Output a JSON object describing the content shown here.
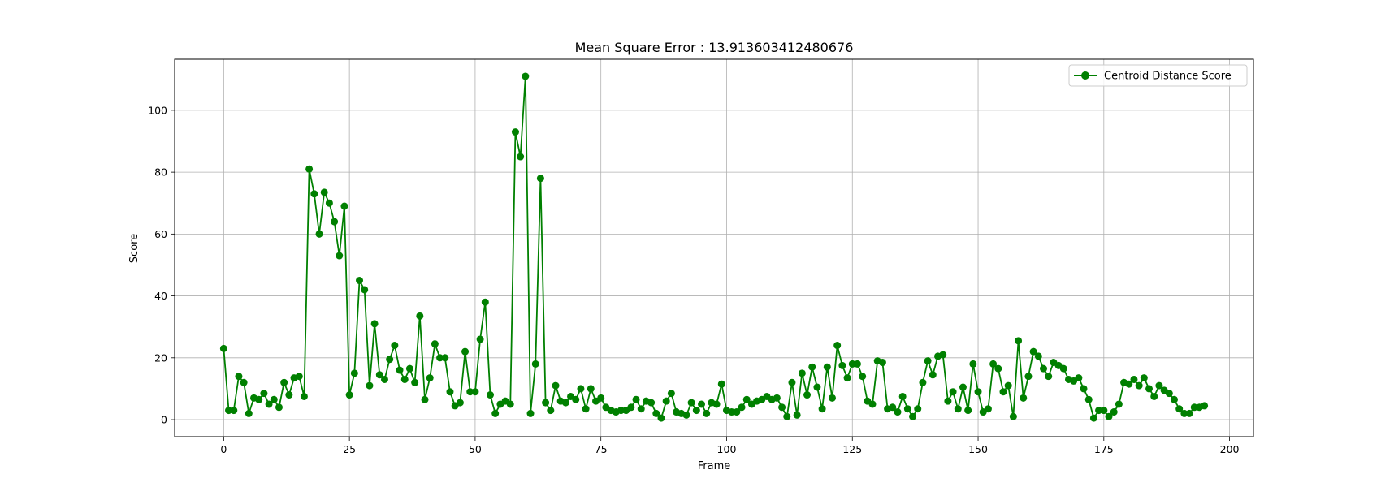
{
  "chart_data": {
    "type": "line",
    "title": "Mean Square Error : 13.913603412480676",
    "xlabel": "Frame",
    "ylabel": "Score",
    "xlim": [
      -9.75,
      204.75
    ],
    "ylim": [
      -5.5,
      116.5
    ],
    "xticks": [
      0,
      25,
      50,
      75,
      100,
      125,
      150,
      175,
      200
    ],
    "yticks": [
      0,
      20,
      40,
      60,
      80,
      100
    ],
    "grid": true,
    "legend_position": "top-right",
    "series": [
      {
        "name": "Centroid Distance Score",
        "color": "#008000",
        "marker": "circle",
        "x": [
          0,
          1,
          2,
          3,
          4,
          5,
          6,
          7,
          8,
          9,
          10,
          11,
          12,
          13,
          14,
          15,
          16,
          17,
          18,
          19,
          20,
          21,
          22,
          23,
          24,
          25,
          26,
          27,
          28,
          29,
          30,
          31,
          32,
          33,
          34,
          35,
          36,
          37,
          38,
          39,
          40,
          41,
          42,
          43,
          44,
          45,
          46,
          47,
          48,
          49,
          50,
          51,
          52,
          53,
          54,
          55,
          56,
          57,
          58,
          59,
          60,
          61,
          62,
          63,
          64,
          65,
          66,
          67,
          68,
          69,
          70,
          71,
          72,
          73,
          74,
          75,
          76,
          77,
          78,
          79,
          80,
          81,
          82,
          83,
          84,
          85,
          86,
          87,
          88,
          89,
          90,
          91,
          92,
          93,
          94,
          95,
          96,
          97,
          98,
          99,
          100,
          101,
          102,
          103,
          104,
          105,
          106,
          107,
          108,
          109,
          110,
          111,
          112,
          113,
          114,
          115,
          116,
          117,
          118,
          119,
          120,
          121,
          122,
          123,
          124,
          125,
          126,
          127,
          128,
          129,
          130,
          131,
          132,
          133,
          134,
          135,
          136,
          137,
          138,
          139,
          140,
          141,
          142,
          143,
          144,
          145,
          146,
          147,
          148,
          149,
          150,
          151,
          152,
          153,
          154,
          155,
          156,
          157,
          158,
          159,
          160,
          161,
          162,
          163,
          164,
          165,
          166,
          167,
          168,
          169,
          170,
          171,
          172,
          173,
          174,
          175,
          176,
          177,
          178,
          179,
          180,
          181,
          182,
          183,
          184,
          185,
          186,
          187,
          188,
          189,
          190,
          191,
          192,
          193,
          194,
          195
        ],
        "y": [
          23,
          3,
          3,
          14,
          12,
          2,
          7,
          6.5,
          8.5,
          5,
          6.5,
          4,
          12,
          8,
          13.5,
          14,
          7.5,
          81,
          73,
          60,
          73.5,
          70,
          64,
          53,
          69,
          8,
          15,
          45,
          42,
          11,
          31,
          14.5,
          13,
          19.5,
          24,
          16,
          13,
          16.5,
          12,
          33.5,
          6.5,
          13.5,
          24.5,
          20,
          20,
          9,
          4.5,
          5.5,
          22,
          9,
          9,
          26,
          38,
          8,
          2,
          5,
          6,
          5,
          93,
          85,
          111,
          2,
          18,
          78,
          5.5,
          3,
          11,
          6,
          5.5,
          7.5,
          6.5,
          10,
          3.5,
          10,
          6,
          7,
          4,
          3,
          2.5,
          3,
          3,
          4,
          6.5,
          3.5,
          6,
          5.5,
          2,
          0.5,
          6,
          8.5,
          2.5,
          2,
          1.5,
          5.5,
          3,
          5,
          2,
          5.5,
          5,
          11.5,
          3,
          2.5,
          2.5,
          4,
          6.5,
          5,
          6,
          6.5,
          7.5,
          6.5,
          7,
          4,
          1,
          12,
          1.5,
          15,
          8,
          17,
          10.5,
          3.5,
          17,
          7,
          24,
          17.5,
          13.5,
          18,
          18,
          14,
          6,
          5,
          19,
          18.5,
          3.5,
          4,
          2.5,
          7.5,
          3.5,
          1,
          3.5,
          12,
          19,
          14.5,
          20.5,
          21,
          6,
          9,
          3.5,
          10.5,
          3,
          18,
          9,
          2.5,
          3.5,
          18,
          16.5,
          9,
          11,
          1,
          25.5,
          7,
          14,
          22,
          20.5,
          16.5,
          14,
          18.5,
          17.5,
          16.5,
          13,
          12.5,
          13.5,
          10,
          6.5,
          0.5,
          3,
          3,
          1,
          2.5,
          5,
          12,
          11.5,
          13,
          11,
          13.5,
          10,
          7.5,
          11,
          9.5,
          8.5,
          6.5,
          3.5,
          2,
          2,
          4,
          4,
          4.5
        ]
      }
    ]
  }
}
